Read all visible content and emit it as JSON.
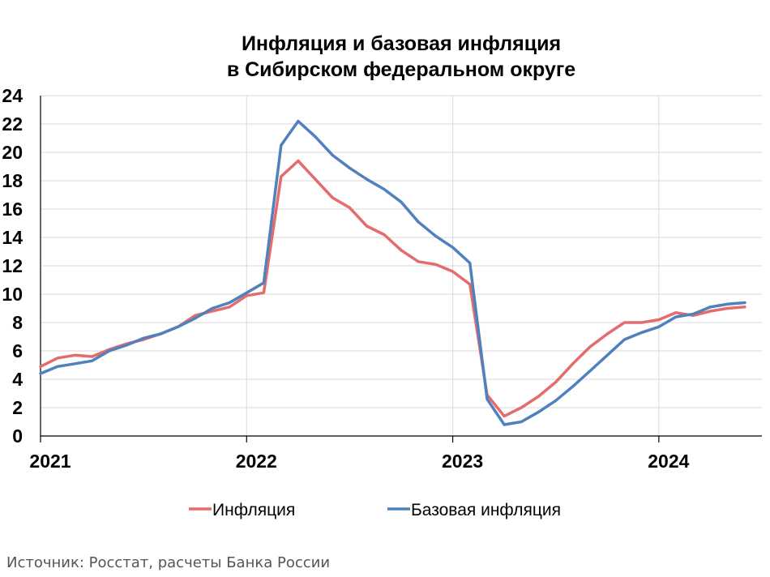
{
  "chart_data": {
    "type": "line",
    "title": "Инфляция и базовая инфляция",
    "subtitle": "в Сибирском федеральном округе",
    "xlabel": "",
    "ylabel": "",
    "xlim": [
      2021.0,
      2024.5
    ],
    "ylim": [
      0,
      24
    ],
    "yticks": [
      0,
      2,
      4,
      6,
      8,
      10,
      12,
      14,
      16,
      18,
      20,
      22,
      24
    ],
    "xticks": [
      {
        "value": 2021,
        "label": "2021"
      },
      {
        "value": 2022,
        "label": "2022"
      },
      {
        "value": 2023,
        "label": "2023"
      },
      {
        "value": 2024,
        "label": "2024"
      }
    ],
    "grid": true,
    "legend_position": "bottom",
    "series": [
      {
        "name": "Инфляция",
        "color": "#e46c6c",
        "points": [
          [
            2021.0,
            4.9
          ],
          [
            2021.083,
            5.5
          ],
          [
            2021.167,
            5.7
          ],
          [
            2021.25,
            5.6
          ],
          [
            2021.333,
            6.1
          ],
          [
            2021.417,
            6.5
          ],
          [
            2021.5,
            6.8
          ],
          [
            2021.583,
            7.2
          ],
          [
            2021.667,
            7.7
          ],
          [
            2021.75,
            8.5
          ],
          [
            2021.833,
            8.8
          ],
          [
            2021.917,
            9.1
          ],
          [
            2022.0,
            9.9
          ],
          [
            2022.083,
            10.1
          ],
          [
            2022.167,
            18.3
          ],
          [
            2022.25,
            19.4
          ],
          [
            2022.333,
            18.1
          ],
          [
            2022.417,
            16.8
          ],
          [
            2022.5,
            16.1
          ],
          [
            2022.583,
            14.8
          ],
          [
            2022.667,
            14.2
          ],
          [
            2022.75,
            13.1
          ],
          [
            2022.833,
            12.3
          ],
          [
            2022.917,
            12.1
          ],
          [
            2023.0,
            11.6
          ],
          [
            2023.083,
            10.7
          ],
          [
            2023.167,
            2.9
          ],
          [
            2023.25,
            1.4
          ],
          [
            2023.333,
            2.0
          ],
          [
            2023.417,
            2.8
          ],
          [
            2023.5,
            3.8
          ],
          [
            2023.583,
            5.1
          ],
          [
            2023.667,
            6.3
          ],
          [
            2023.75,
            7.2
          ],
          [
            2023.833,
            8.0
          ],
          [
            2023.917,
            8.0
          ],
          [
            2024.0,
            8.2
          ],
          [
            2024.083,
            8.7
          ],
          [
            2024.167,
            8.5
          ],
          [
            2024.25,
            8.8
          ],
          [
            2024.333,
            9.0
          ],
          [
            2024.417,
            9.1
          ]
        ]
      },
      {
        "name": "Базовая инфляция",
        "color": "#4f81bd",
        "points": [
          [
            2021.0,
            4.4
          ],
          [
            2021.083,
            4.9
          ],
          [
            2021.167,
            5.1
          ],
          [
            2021.25,
            5.3
          ],
          [
            2021.333,
            6.0
          ],
          [
            2021.417,
            6.4
          ],
          [
            2021.5,
            6.9
          ],
          [
            2021.583,
            7.2
          ],
          [
            2021.667,
            7.7
          ],
          [
            2021.75,
            8.3
          ],
          [
            2021.833,
            9.0
          ],
          [
            2021.917,
            9.4
          ],
          [
            2022.0,
            10.1
          ],
          [
            2022.083,
            10.8
          ],
          [
            2022.167,
            20.5
          ],
          [
            2022.25,
            22.2
          ],
          [
            2022.333,
            21.1
          ],
          [
            2022.417,
            19.8
          ],
          [
            2022.5,
            18.9
          ],
          [
            2022.583,
            18.1
          ],
          [
            2022.667,
            17.4
          ],
          [
            2022.75,
            16.5
          ],
          [
            2022.833,
            15.1
          ],
          [
            2022.917,
            14.1
          ],
          [
            2023.0,
            13.3
          ],
          [
            2023.083,
            12.2
          ],
          [
            2023.167,
            2.6
          ],
          [
            2023.25,
            0.8
          ],
          [
            2023.333,
            1.0
          ],
          [
            2023.417,
            1.7
          ],
          [
            2023.5,
            2.5
          ],
          [
            2023.583,
            3.5
          ],
          [
            2023.667,
            4.6
          ],
          [
            2023.75,
            5.7
          ],
          [
            2023.833,
            6.8
          ],
          [
            2023.917,
            7.3
          ],
          [
            2024.0,
            7.7
          ],
          [
            2024.083,
            8.4
          ],
          [
            2024.167,
            8.6
          ],
          [
            2024.25,
            9.1
          ],
          [
            2024.333,
            9.3
          ],
          [
            2024.417,
            9.4
          ]
        ]
      }
    ]
  },
  "source": "Источник: Росстат, расчеты Банка России"
}
